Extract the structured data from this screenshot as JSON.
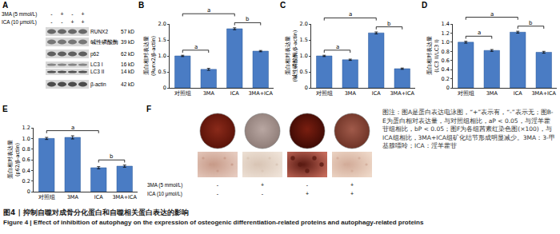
{
  "panel_A": {
    "label": "A",
    "treatments": [
      {
        "name": "3MA (5 mmol/L)",
        "signs": [
          "-",
          "+",
          "-",
          "+"
        ]
      },
      {
        "name": "ICA (10 μmol/L)",
        "signs": [
          "-",
          "-",
          "+",
          "+"
        ]
      }
    ],
    "bands": [
      {
        "name": "RUNX2",
        "size": "57 kD"
      },
      {
        "name": "碱性磷酸酶",
        "size": "39 kD"
      },
      {
        "name": "p62",
        "size": "62 kD"
      },
      {
        "name": "LC3 I",
        "size": "16 kD"
      },
      {
        "name": "LC3 II",
        "size": "14 kD"
      },
      {
        "name": "β-actin",
        "size": "42 kD"
      }
    ]
  },
  "chart_data": [
    {
      "panel_label": "B",
      "type": "bar",
      "categories": [
        "对照组",
        "3MA",
        "ICA",
        "3MA+ICA"
      ],
      "values": [
        1.0,
        0.58,
        1.85,
        1.15
      ],
      "errors": [
        0.02,
        0.03,
        0.03,
        0.02
      ],
      "color": "#4a7cc4",
      "y_label": "蛋白相对表达量(Runx2/β-actin)",
      "ylim": [
        0,
        2
      ],
      "yticks": [
        0,
        0.5,
        {
          "value": 1,
          "label": "1.0"
        },
        1.5,
        {
          "value": 2,
          "label": "2.0"
        }
      ],
      "grid": false,
      "annotations": [
        {
          "from": "对照组",
          "to": "3MA",
          "text": "a"
        },
        {
          "from": "对照组",
          "to": "ICA",
          "text": "a"
        },
        {
          "from": "ICA",
          "to": "3MA+ICA",
          "text": "b"
        }
      ]
    },
    {
      "panel_label": "C",
      "type": "bar",
      "categories": [
        "对照组",
        "3MA",
        "ICA",
        "3MA+ICA"
      ],
      "values": [
        1.0,
        0.88,
        1.72,
        0.6
      ],
      "errors": [
        0.02,
        0.02,
        0.03,
        0.02
      ],
      "color": "#4a7cc4",
      "y_label": "蛋白相对表达量(碱性磷酸酶/β-actin)",
      "ylim": [
        0,
        2
      ],
      "yticks": [
        0,
        0.5,
        {
          "value": 1,
          "label": "1.0"
        },
        1.5,
        {
          "value": 2,
          "label": "2.0"
        }
      ],
      "grid": false,
      "annotations": [
        {
          "from": "对照组",
          "to": "3MA",
          "text": "a"
        },
        {
          "from": "对照组",
          "to": "ICA",
          "text": "a"
        },
        {
          "from": "ICA",
          "to": "3MA+ICA",
          "text": "b"
        }
      ]
    },
    {
      "panel_label": "D",
      "type": "bar",
      "categories": [
        "对照组",
        "3MA",
        "ICA",
        "3MA+ICA"
      ],
      "values": [
        1.0,
        0.82,
        1.22,
        0.78
      ],
      "errors": [
        0.02,
        0.02,
        0.02,
        0.02
      ],
      "color": "#4a7cc4",
      "y_label": "蛋白相对表达量(LC3 II/LC3 I)",
      "ylim": [
        0,
        1.4
      ],
      "yticks": [
        0,
        0.2,
        0.4,
        0.6,
        0.8,
        {
          "value": 1,
          "label": "1.0"
        },
        1.2,
        1.4
      ],
      "grid": false,
      "annotations": [
        {
          "from": "对照组",
          "to": "3MA",
          "text": "a"
        },
        {
          "from": "对照组",
          "to": "ICA",
          "text": "a"
        },
        {
          "from": "ICA",
          "to": "3MA+ICA",
          "text": "b"
        }
      ]
    },
    {
      "panel_label": "E",
      "type": "bar",
      "categories": [
        "对照组",
        "3MA",
        "ICA",
        "3MA+ICA"
      ],
      "values": [
        1.0,
        1.02,
        0.45,
        0.48
      ],
      "errors": [
        0.02,
        0.03,
        0.02,
        0.02
      ],
      "color": "#4a7cc4",
      "y_label": "蛋白相对表达量(p62/β-actin)",
      "ylim": [
        0,
        1.2
      ],
      "yticks": [
        0,
        0.2,
        0.4,
        0.6,
        0.8,
        {
          "value": 1,
          "label": "1.0"
        },
        1.2
      ],
      "grid": false,
      "annotations": [
        {
          "from": "对照组",
          "to": "ICA",
          "text": "a"
        },
        {
          "from": "ICA",
          "to": "3MA+ICA",
          "text": "b"
        }
      ]
    }
  ],
  "panel_F": {
    "label": "F",
    "treatments": [
      {
        "name": "3MA (5 mmol/L)",
        "signs": [
          "-",
          "+",
          "-",
          "+"
        ]
      },
      {
        "name": "ICA (10 μmol/L)",
        "signs": [
          "-",
          "-",
          "+",
          "+"
        ]
      }
    ]
  },
  "note": "图注：图A是蛋白表达电泳图，“+”表示有，“-”表示无；图B-E为蛋白相对表达量，与对照组相比，aP < 0.05，与淫羊藿苷组相比，bP < 0.05；图F为各组茜素红染色图(×100)，与ICA组相比，3MA+ICA组矿化结节形成明显减少。3MA：3-甲基腺嘌呤；ICA：淫羊藿苷",
  "caption": [
    "图4 | 抑制自噬对成骨分化蛋白和自噬相关蛋白表达的影响",
    "Figure 4 | Effect of inhibition of autophagy on the expression of osteogenic differentiation-related proteins and autophagy-related proteins"
  ]
}
